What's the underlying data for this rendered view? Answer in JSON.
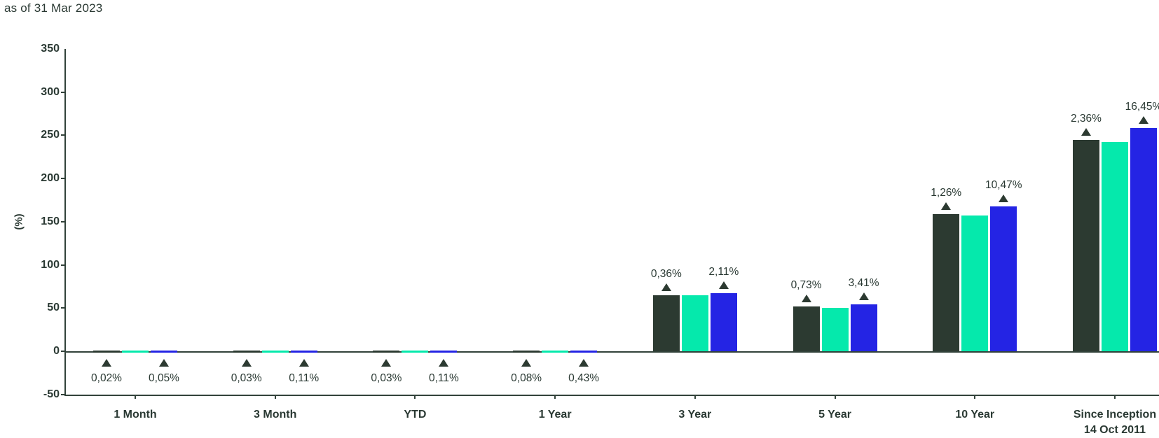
{
  "header": {
    "title": "as of 31 Mar 2023"
  },
  "chart_data": {
    "type": "bar",
    "title": "as of 31 Mar 2023",
    "xlabel": "",
    "ylabel": "(%)",
    "ylim": [
      -50,
      350
    ],
    "yticks": [
      350,
      300,
      250,
      200,
      150,
      100,
      50,
      0,
      -50
    ],
    "grid": false,
    "legend": "none",
    "categories": [
      {
        "label": "1 Month",
        "sublabel": ""
      },
      {
        "label": "3 Month",
        "sublabel": ""
      },
      {
        "label": "YTD",
        "sublabel": ""
      },
      {
        "label": "1 Year",
        "sublabel": ""
      },
      {
        "label": "3 Year",
        "sublabel": ""
      },
      {
        "label": "5 Year",
        "sublabel": ""
      },
      {
        "label": "10 Year",
        "sublabel": ""
      },
      {
        "label": "Since Inception",
        "sublabel": "14 Oct 2011"
      }
    ],
    "series": [
      {
        "name": "series-1-dark-green",
        "color": "#2c3a31",
        "values": [
          0.5,
          0.5,
          0.5,
          0.5,
          65.0,
          51.5,
          158.5,
          244.5
        ]
      },
      {
        "name": "series-2-mint-green",
        "color": "#05e9ac",
        "values": [
          0.5,
          0.5,
          0.5,
          0.5,
          64.5,
          50.5,
          157.5,
          242.0
        ]
      },
      {
        "name": "series-3-blue",
        "color": "#2424e4",
        "values": [
          0.5,
          0.5,
          0.5,
          0.5,
          67.5,
          54.0,
          168.0,
          258.5
        ]
      }
    ],
    "marker_symbol": "triangle-up",
    "marker_annotations": [
      {
        "category": 0,
        "position": "below",
        "items": [
          {
            "series": 0,
            "label": "0,02%"
          },
          {
            "series": 2,
            "label": "0,05%"
          }
        ]
      },
      {
        "category": 1,
        "position": "below",
        "items": [
          {
            "series": 0,
            "label": "0,03%"
          },
          {
            "series": 2,
            "label": "0,11%"
          }
        ]
      },
      {
        "category": 2,
        "position": "below",
        "items": [
          {
            "series": 0,
            "label": "0,03%"
          },
          {
            "series": 2,
            "label": "0,11%"
          }
        ]
      },
      {
        "category": 3,
        "position": "below",
        "items": [
          {
            "series": 0,
            "label": "0,08%"
          },
          {
            "series": 2,
            "label": "0,43%"
          }
        ]
      },
      {
        "category": 4,
        "position": "above",
        "items": [
          {
            "series": 0,
            "label": "0,36%"
          },
          {
            "series": 2,
            "label": "2,11%"
          }
        ]
      },
      {
        "category": 5,
        "position": "above",
        "items": [
          {
            "series": 0,
            "label": "0,73%"
          },
          {
            "series": 2,
            "label": "3,41%"
          }
        ]
      },
      {
        "category": 6,
        "position": "above",
        "items": [
          {
            "series": 0,
            "label": "1,26%"
          },
          {
            "series": 2,
            "label": "10,47%"
          }
        ]
      },
      {
        "category": 7,
        "position": "above",
        "items": [
          {
            "series": 0,
            "label": "2,36%"
          },
          {
            "series": 2,
            "label": "16,45%"
          }
        ]
      }
    ],
    "colors": {
      "text": "#2a3933",
      "axis": "#32423a",
      "marker": "#2c3a31",
      "background": "#ffffff"
    }
  }
}
